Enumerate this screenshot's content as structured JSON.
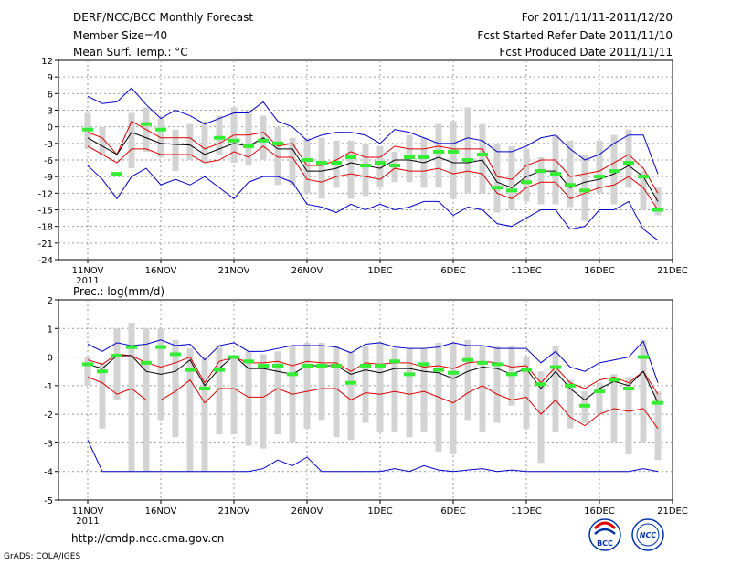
{
  "header": {
    "title": "DERF/NCC/BCC Monthly Forecast",
    "member_size": "Member Size=40",
    "variable": "Mean Surf. Temp.: °C",
    "period": "For 2011/11/11-2011/12/20",
    "fcst_started": "Fcst Started Refer Date 2011/11/10",
    "fcst_produced": "Fcst Produced Date 2011/11/11"
  },
  "footer": {
    "url": "http://cmdp.ncc.cma.gov.cn",
    "grads": "GrADS: COLA/IGES",
    "logo_bcc": "BCC",
    "logo_ncc": "NCC"
  },
  "colors": {
    "mean": "#000000",
    "spread": "#dd0000",
    "envelope": "#0000cc",
    "box": "#d3d3d3",
    "marker": "#33ee33",
    "grid": "#999999"
  },
  "chart_data": [
    {
      "type": "line",
      "title": "Mean Surf. Temp.: °C",
      "ylabel": "°C",
      "ylim": [
        -24,
        12
      ],
      "yticks": [
        "12",
        "9",
        "6",
        "3",
        "0",
        "-3",
        "-6",
        "-9",
        "-12",
        "-15",
        "-18",
        "-21",
        "-24"
      ],
      "xticks": [
        "11NOV",
        "16NOV",
        "21NOV",
        "26NOV",
        "1DEC",
        "6DEC",
        "11DEC",
        "16DEC",
        "21DEC"
      ],
      "xtick_year": "2011",
      "series": [
        {
          "name": "max",
          "values": [
            5.5,
            4.2,
            4.5,
            7,
            4,
            1.5,
            3,
            2,
            0.5,
            1.5,
            2.5,
            2.5,
            4.5,
            1,
            0,
            -2.5,
            -1.5,
            -1,
            -1,
            -1.5,
            -3,
            -0.5,
            -1,
            -2,
            -3,
            -3,
            -2,
            -2.5,
            -4.5,
            -4.5,
            -3.5,
            -2,
            -1.5,
            -4,
            -6,
            -5,
            -3,
            -1.5,
            -1.5,
            -8.5
          ]
        },
        {
          "name": "upper",
          "values": [
            -1,
            -2,
            -5,
            1,
            -0.5,
            -2,
            -2,
            -2,
            -4,
            -3,
            -1.5,
            -1.5,
            -1,
            -3.5,
            -3,
            -7,
            -7,
            -6,
            -4.5,
            -5.5,
            -5.5,
            -3.5,
            -4,
            -4,
            -3.5,
            -4,
            -4,
            -4,
            -9,
            -9.5,
            -7,
            -6,
            -6,
            -9,
            -8.5,
            -8,
            -6.5,
            -5,
            -7.5,
            -12
          ]
        },
        {
          "name": "mean",
          "values": [
            -2,
            -3.5,
            -5,
            -1,
            -2,
            -3,
            -3.2,
            -3.3,
            -5,
            -4,
            -3,
            -3.5,
            -2,
            -4,
            -4,
            -8,
            -8,
            -7.5,
            -6.5,
            -7,
            -7.5,
            -6,
            -6,
            -6.5,
            -5.5,
            -6.5,
            -6.5,
            -6,
            -10,
            -11,
            -9,
            -8,
            -8,
            -11,
            -10,
            -9.5,
            -8.5,
            -7,
            -9,
            -13.5
          ]
        },
        {
          "name": "lower",
          "values": [
            -3.5,
            -5,
            -6.5,
            -4,
            -4,
            -5,
            -5,
            -5,
            -6.5,
            -6,
            -4.5,
            -5.5,
            -3.5,
            -5.5,
            -5.5,
            -9.5,
            -10,
            -9,
            -8.5,
            -9,
            -9.5,
            -7.5,
            -8,
            -8,
            -7.5,
            -8.5,
            -8,
            -8.5,
            -12,
            -13,
            -11,
            -10,
            -10,
            -13,
            -12,
            -11,
            -10.5,
            -9,
            -11,
            -15
          ]
        },
        {
          "name": "min",
          "values": [
            -7,
            -9.5,
            -13,
            -9,
            -7.5,
            -10.5,
            -9.5,
            -10.5,
            -9,
            -11,
            -13,
            -10,
            -9,
            -9,
            -10,
            -14,
            -14.5,
            -15.5,
            -14,
            -15,
            -14,
            -15,
            -14.5,
            -13.5,
            -13.5,
            -16,
            -14.5,
            -15,
            -17.5,
            -18,
            -16.5,
            -15,
            -15,
            -18.5,
            -18,
            -15,
            -15,
            -13.5,
            -18.5,
            -20.5
          ]
        },
        {
          "name": "marker",
          "values": [
            -0.5,
            null,
            -8.5,
            null,
            0.5,
            -0.5,
            null,
            null,
            null,
            -2,
            -2.5,
            -3.5,
            -2.5,
            -3,
            null,
            -6,
            -6.5,
            -6.5,
            -5.5,
            -7,
            -6.5,
            -7,
            -5.5,
            -5.5,
            -4.5,
            -4.5,
            -6,
            -5,
            -11,
            -11.5,
            -10,
            -8,
            -8.5,
            -10.5,
            -11.5,
            -9,
            -8,
            -6.5,
            -9,
            -15
          ]
        }
      ],
      "boxes": {
        "top": [
          2.5,
          0,
          null,
          2.5,
          3.5,
          1.5,
          -0.5,
          0.5,
          1,
          2,
          3.5,
          3,
          2,
          0,
          -2,
          -2,
          -2,
          -2.5,
          -2.5,
          -3,
          -3.5,
          -4.5,
          -1.5,
          -2,
          0.5,
          1,
          3.5,
          0.5,
          -3,
          -3.5,
          -4,
          -5.5,
          -1.5,
          -2.5,
          -5,
          -2.5,
          -1.5,
          -0.5,
          -8,
          -11
        ],
        "bottom": [
          -4,
          -5,
          null,
          -7.5,
          -4.5,
          -5.5,
          -8,
          -6,
          -6.5,
          -5,
          -6.5,
          -7,
          -6,
          -10.5,
          -10.5,
          -12,
          -13,
          -11,
          -13,
          -12.5,
          -11,
          -10,
          -10,
          -11,
          -11,
          -13,
          -12,
          -12,
          -15.5,
          -15,
          -13.5,
          -14,
          -14,
          -14.5,
          -17,
          -12,
          -14,
          -11,
          -15,
          -16
        ]
      }
    },
    {
      "type": "line",
      "title": "Prec.: log(mm/d)",
      "ylabel": "log(mm/d)",
      "ylim": [
        -5,
        2
      ],
      "yticks": [
        "2",
        "1",
        "0",
        "-1",
        "-2",
        "-3",
        "-4",
        "-5"
      ],
      "xticks": [
        "11NOV",
        "16NOV",
        "21NOV",
        "26NOV",
        "1DEC",
        "6DEC",
        "11DEC",
        "16DEC",
        "21DEC"
      ],
      "xtick_year": "2011",
      "series": [
        {
          "name": "max",
          "values": [
            0.45,
            0.2,
            0.5,
            0.4,
            0.45,
            0.6,
            0.4,
            0.45,
            -0.1,
            0.4,
            0.5,
            0.2,
            0.2,
            0.3,
            0.4,
            0.4,
            0.4,
            0.35,
            0.15,
            0.45,
            0.5,
            0.35,
            0.3,
            0.3,
            0.35,
            0.5,
            0.4,
            0.4,
            0.3,
            0.3,
            0.3,
            -0.2,
            0.2,
            -0.35,
            -0.5,
            -0.2,
            -0.1,
            0,
            0.55,
            -0.9
          ]
        },
        {
          "name": "upper",
          "values": [
            -0.1,
            -0.25,
            0.1,
            0.05,
            -0.2,
            -0.35,
            -0.2,
            0,
            -0.9,
            -0.15,
            0,
            -0.2,
            -0.2,
            -0.15,
            -0.3,
            -0.15,
            -0.2,
            -0.2,
            -0.5,
            -0.2,
            -0.25,
            -0.2,
            -0.2,
            -0.35,
            -0.3,
            -0.4,
            -0.2,
            -0.15,
            -0.2,
            -0.35,
            -0.3,
            -0.9,
            -0.35,
            -0.9,
            -1.1,
            -0.8,
            -0.7,
            -0.9,
            -0.5,
            -1.3
          ]
        },
        {
          "name": "mean",
          "values": [
            -0.25,
            -0.4,
            0.05,
            0.05,
            -0.5,
            -0.6,
            -0.5,
            -0.1,
            -1.0,
            -0.4,
            0.05,
            -0.4,
            -0.4,
            -0.5,
            -0.6,
            -0.3,
            -0.3,
            -0.3,
            -0.6,
            -0.45,
            -0.55,
            -0.4,
            -0.4,
            -0.5,
            -0.55,
            -0.75,
            -0.5,
            -0.35,
            -0.4,
            -0.6,
            -0.4,
            -1.1,
            -0.5,
            -1.1,
            -1.5,
            -1.1,
            -0.85,
            -1.0,
            -0.5,
            -1.6
          ]
        },
        {
          "name": "lower",
          "values": [
            -0.7,
            -0.9,
            -1.3,
            -1.1,
            -1.5,
            -1.5,
            -1.2,
            -0.8,
            -1.6,
            -1.1,
            -1.1,
            -1.4,
            -1.4,
            -1.1,
            -1.3,
            -1.2,
            -1.1,
            -1.1,
            -1.5,
            -1.25,
            -1.3,
            -1.2,
            -1.3,
            -1.2,
            -1.4,
            -1.6,
            -1.25,
            -1.0,
            -1.3,
            -1.5,
            -1.4,
            -2.0,
            -1.5,
            -2.1,
            -2.4,
            -2.0,
            -1.8,
            -1.9,
            -1.8,
            -2.5
          ]
        },
        {
          "name": "min",
          "values": [
            -2.9,
            -4.0,
            -4.0,
            -4.0,
            -4.0,
            -4.0,
            -4.0,
            -4.0,
            -4.0,
            -4.0,
            -4.0,
            -4.0,
            -3.9,
            -3.6,
            -3.8,
            -3.5,
            -4.0,
            -4.0,
            -4.0,
            -4.0,
            -4.0,
            -3.9,
            -4.0,
            -3.8,
            -3.95,
            -4.0,
            -3.95,
            -3.9,
            -4.0,
            -3.95,
            -4.0,
            -4.0,
            -4.0,
            -4.0,
            -4.0,
            -4.0,
            -4.0,
            -4.0,
            -3.9,
            -4.0
          ]
        },
        {
          "name": "marker",
          "values": [
            -0.25,
            -0.5,
            0.05,
            0.35,
            -0.2,
            0.35,
            0.1,
            -0.45,
            -1.1,
            -0.45,
            0.0,
            -0.15,
            -0.3,
            -0.3,
            -0.6,
            -0.3,
            -0.3,
            -0.3,
            -0.9,
            -0.3,
            -0.3,
            -0.15,
            -0.6,
            -0.25,
            -0.45,
            -0.55,
            -0.1,
            -0.2,
            -0.25,
            -0.6,
            -0.45,
            -0.95,
            -0.35,
            -1.0,
            -1.7,
            -1.2,
            -0.8,
            -1.1,
            0.0,
            -1.6
          ]
        }
      ],
      "boxes": {
        "top": [
          0.0,
          -0.2,
          1.0,
          1.2,
          1.0,
          1.0,
          0.6,
          0.3,
          0.0,
          0.4,
          0.0,
          0.2,
          0.1,
          0.2,
          0.4,
          0.5,
          0.5,
          0.4,
          0.2,
          0.4,
          0.5,
          0.3,
          0.3,
          0.3,
          0.5,
          0.5,
          0.6,
          0.4,
          0.4,
          0.4,
          0.0,
          -0.5,
          0.4,
          -0.8,
          -1.2,
          -0.9,
          -0.6,
          -0.7,
          0.6,
          -1.2
        ],
        "bottom": [
          -1.0,
          -2.5,
          -1.5,
          -4.0,
          -4.0,
          -2.2,
          -2.8,
          -4.0,
          -4.0,
          -2.7,
          -2.7,
          -3.1,
          -3.2,
          -2.7,
          -3.0,
          -2.5,
          -2.2,
          -2.8,
          -2.9,
          -2.3,
          -2.6,
          -2.6,
          -2.8,
          -2.6,
          -3.3,
          -3.4,
          -2.2,
          -2.6,
          -2.3,
          -1.7,
          -2.5,
          -3.7,
          -2.6,
          -2.5,
          -2.3,
          -2.0,
          -3.0,
          -3.4,
          -3.0,
          -3.6
        ]
      }
    }
  ]
}
